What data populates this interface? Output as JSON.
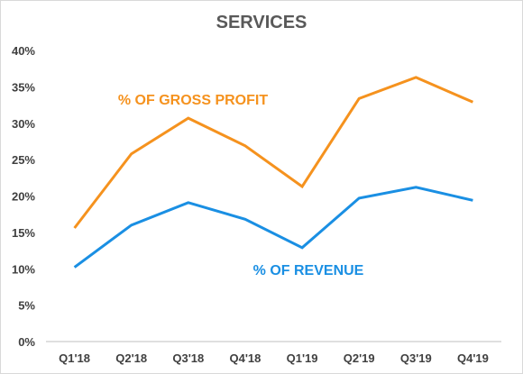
{
  "chart_data": {
    "type": "line",
    "title": "SERVICES",
    "xlabel": "",
    "ylabel": "",
    "categories": [
      "Q1'18",
      "Q2'18",
      "Q3'18",
      "Q4'18",
      "Q1'19",
      "Q2'19",
      "Q3'19",
      "Q4'19"
    ],
    "ylim": [
      0,
      40
    ],
    "yticks": [
      "0%",
      "5%",
      "10%",
      "15%",
      "20%",
      "25%",
      "30%",
      "35%",
      "40%"
    ],
    "grid": false,
    "series": [
      {
        "name": "% OF GROSS PROFIT",
        "color": "#f5921e",
        "values": [
          15.6,
          25.8,
          30.7,
          26.9,
          21.3,
          33.4,
          36.3,
          32.9
        ]
      },
      {
        "name": "% OF REVENUE",
        "color": "#1a8fe3",
        "values": [
          10.2,
          16.0,
          19.1,
          16.8,
          12.9,
          19.7,
          21.2,
          19.4
        ]
      }
    ]
  }
}
